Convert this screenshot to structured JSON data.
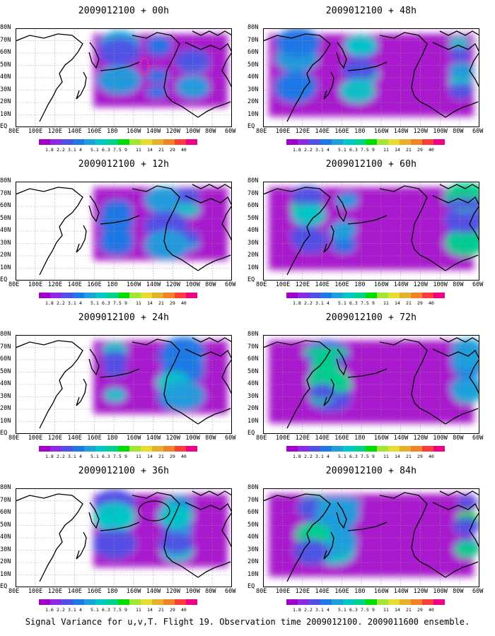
{
  "footer": "Signal Variance for u,v,T. Flight 19. Observation time 2009012100. 2009011600 ensemble.",
  "lat_labels": [
    "80N",
    "70N",
    "60N",
    "50N",
    "40N",
    "30N",
    "20N",
    "10N",
    "EQ"
  ],
  "lon_labels": [
    "80E",
    "100E",
    "120E",
    "140E",
    "160E",
    "180",
    "160W",
    "140W",
    "120W",
    "100W",
    "80W",
    "60W"
  ],
  "colorbar": {
    "labels": [
      "1.8",
      "2.2",
      "3.1",
      "4",
      "5.1",
      "6.3",
      "7.5",
      "9",
      "11",
      "14",
      "21",
      "29",
      "40"
    ],
    "labels_36h": [
      "1.6",
      "2.2",
      "3.1",
      "4",
      "5.1",
      "6.3",
      "7.5",
      "9",
      "11",
      "14",
      "21",
      "29",
      "40"
    ],
    "colors": [
      "#a000c8",
      "#8c28e6",
      "#5050e6",
      "#1e78e6",
      "#1ea0dc",
      "#00c8c8",
      "#00d28c",
      "#00dc00",
      "#a0e632",
      "#e6dc32",
      "#e6af2d",
      "#f08228",
      "#fa3c3c",
      "#f00082"
    ]
  },
  "panels": [
    {
      "title": "2009012100 + 00h"
    },
    {
      "title": "2009012100 + 48h"
    },
    {
      "title": "2009012100 + 12h"
    },
    {
      "title": "2009012100 + 60h"
    },
    {
      "title": "2009012100 + 24h"
    },
    {
      "title": "2009012100 + 72h"
    },
    {
      "title": "2009012100 + 36h"
    },
    {
      "title": "2009012100 + 84h"
    }
  ],
  "chart_data": {
    "type": "heatmap",
    "x_range": [
      "80E",
      "60W"
    ],
    "y_range": [
      "EQ",
      "80N"
    ],
    "grid": true,
    "panel_order": [
      "00h",
      "48h",
      "12h",
      "60h",
      "24h",
      "72h",
      "36h",
      "84h"
    ]
  }
}
